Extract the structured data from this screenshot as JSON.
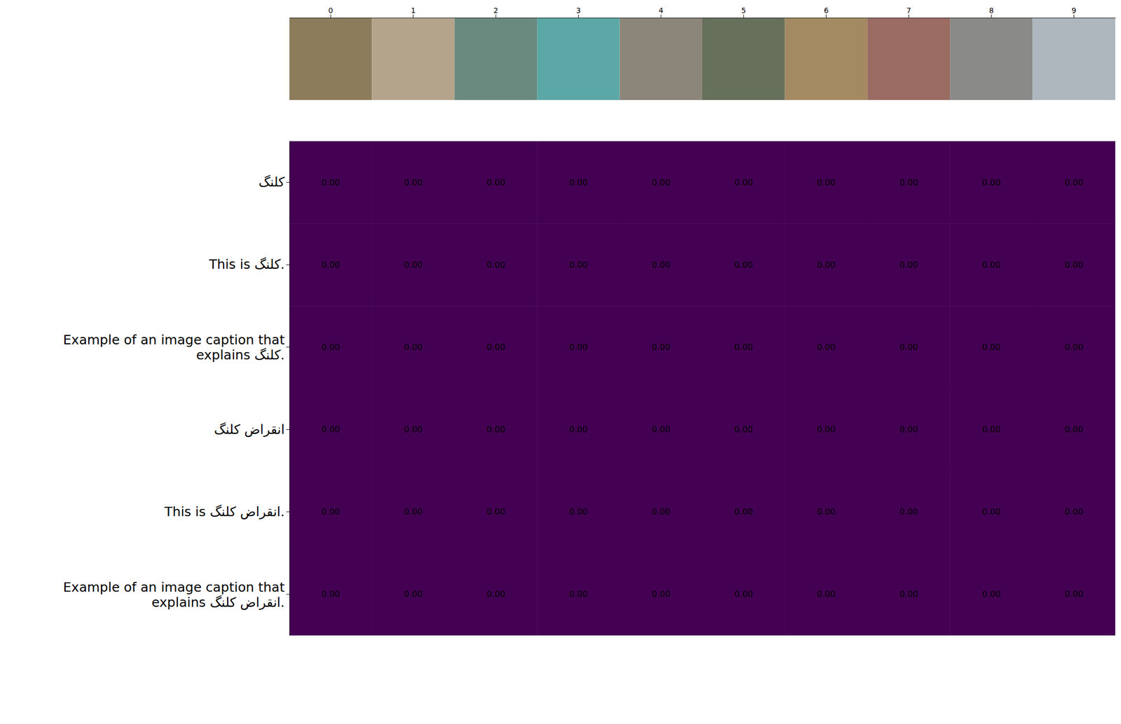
{
  "chart_data": {
    "type": "heatmap",
    "x": [
      0,
      1,
      2,
      3,
      4,
      5,
      6,
      7,
      8,
      9
    ],
    "y": [
      "کلنگ",
      "This is کلنگ.",
      "Example of an image caption that explains کلنگ.",
      "انقراض کلنگ",
      "This is انقراض کلنگ.",
      "Example of an image caption that explains انقراض کلنگ."
    ],
    "values": [
      [
        0,
        0,
        0,
        0,
        0,
        0,
        0,
        0,
        0,
        0
      ],
      [
        0,
        0,
        0,
        0,
        0,
        0,
        0,
        0,
        0,
        0
      ],
      [
        0,
        0,
        0,
        0,
        0,
        0,
        0,
        0,
        0,
        0
      ],
      [
        0,
        0,
        0,
        0,
        0,
        0,
        0,
        0,
        0,
        0
      ],
      [
        0,
        0,
        0,
        0,
        0,
        0,
        0,
        0,
        0,
        0
      ],
      [
        0,
        0,
        0,
        0,
        0,
        0,
        0,
        0,
        0,
        0
      ]
    ],
    "value_labels": [
      [
        "0.00",
        "0.00",
        "0.00",
        "0.00",
        "0.00",
        "0.00",
        "0.00",
        "0.00",
        "0.00",
        "0.00"
      ],
      [
        "0.00",
        "0.00",
        "0.00",
        "0.00",
        "0.00",
        "0.00",
        "0.00",
        "0.00",
        "0.00",
        "0.00"
      ],
      [
        "0.00",
        "0.00",
        "0.00",
        "0.00",
        "0.00",
        "0.00",
        "0.00",
        "0.00",
        "0.00",
        "0.00"
      ],
      [
        "0.00",
        "0.00",
        "0.00",
        "0.00",
        "0.00",
        "0.00",
        "0.00",
        "0.00",
        "0.00",
        "0.00"
      ],
      [
        "0.00",
        "0.00",
        "0.00",
        "0.00",
        "0.00",
        "0.00",
        "0.00",
        "0.00",
        "0.00",
        "0.00"
      ],
      [
        "0.00",
        "0.00",
        "0.00",
        "0.00",
        "0.00",
        "0.00",
        "0.00",
        "0.00",
        "0.00",
        "0.00"
      ]
    ],
    "data_labels": true,
    "color": "#440154"
  }
}
